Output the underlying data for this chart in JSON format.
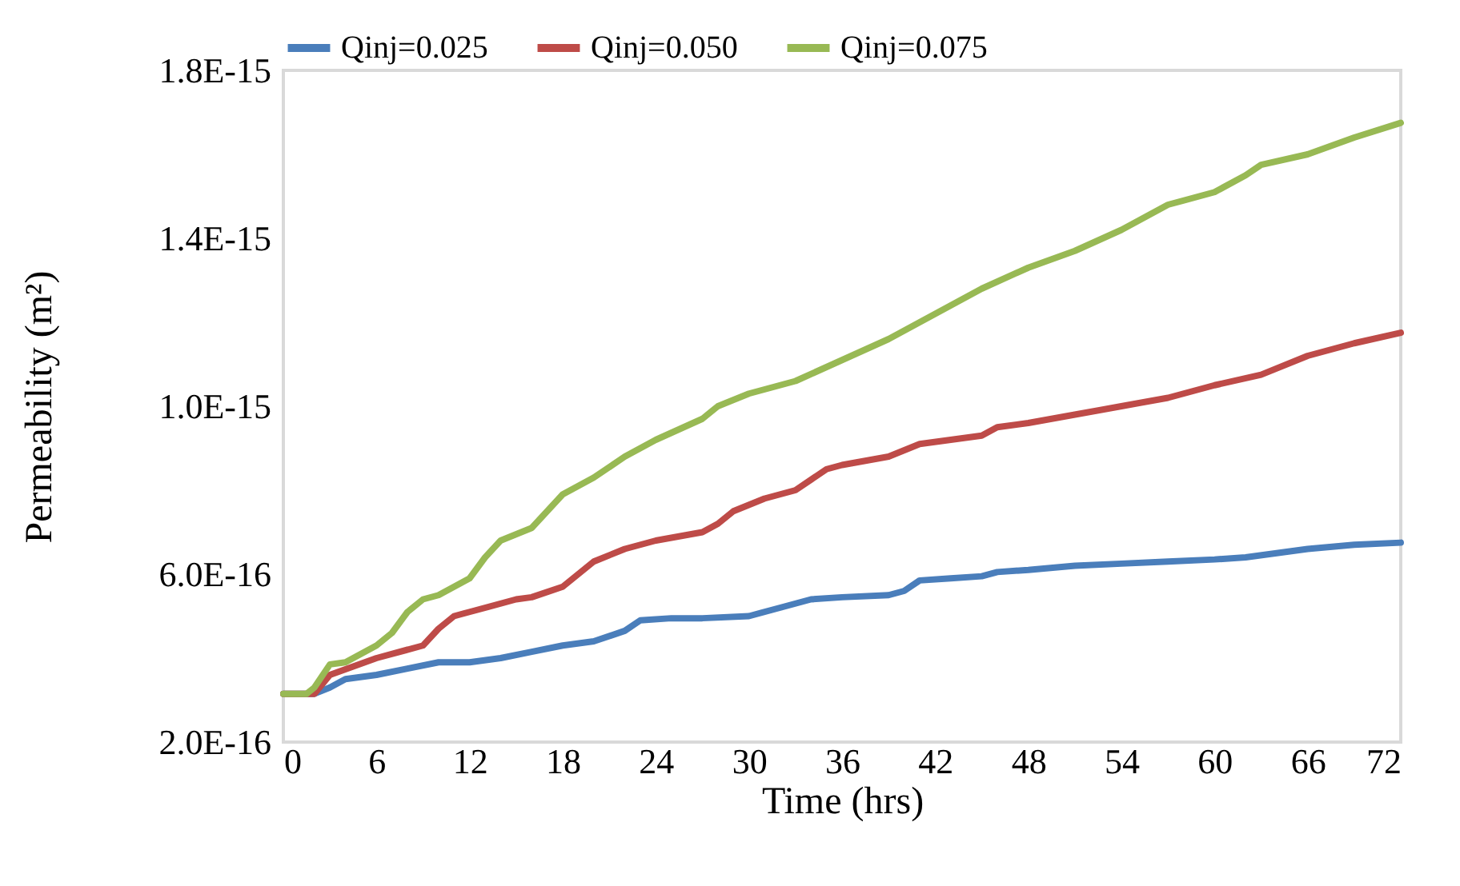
{
  "chart_data": {
    "type": "line",
    "xlabel": "Time (hrs)",
    "ylabel": "Permeability (m²)",
    "xlim": [
      0,
      72
    ],
    "xticks": [
      0,
      6,
      12,
      18,
      24,
      30,
      36,
      42,
      48,
      54,
      60,
      66,
      72
    ],
    "ylim": [
      2e-16,
      1.8e-15
    ],
    "yticks": [
      {
        "value": 2e-16,
        "label": "2.0E-16"
      },
      {
        "value": 6e-16,
        "label": "6.0E-16"
      },
      {
        "value": 1e-15,
        "label": "1.0E-15"
      },
      {
        "value": 1.4e-15,
        "label": "1.4E-15"
      },
      {
        "value": 1.8e-15,
        "label": "1.8E-15"
      }
    ],
    "grid": false,
    "legend": "top",
    "marker": "none",
    "line_style": "solid",
    "series": [
      {
        "name": "Qinj=0.025",
        "color": "#4a7ebb",
        "x": [
          0,
          2,
          3,
          4,
          6,
          8,
          10,
          12,
          14,
          16,
          18,
          20,
          22,
          23,
          25,
          27,
          30,
          32,
          34,
          36,
          39,
          40,
          41,
          43,
          45,
          46,
          48,
          51,
          54,
          57,
          60,
          62,
          64,
          66,
          69,
          72
        ],
        "values": [
          3.15e-16,
          3.15e-16,
          3.3e-16,
          3.5e-16,
          3.6e-16,
          3.75e-16,
          3.9e-16,
          3.9e-16,
          4e-16,
          4.15e-16,
          4.3e-16,
          4.4e-16,
          4.65e-16,
          4.9e-16,
          4.95e-16,
          4.95e-16,
          5e-16,
          5.2e-16,
          5.4e-16,
          5.45e-16,
          5.5e-16,
          5.6e-16,
          5.85e-16,
          5.9e-16,
          5.95e-16,
          6.05e-16,
          6.1e-16,
          6.2e-16,
          6.25e-16,
          6.3e-16,
          6.35e-16,
          6.4e-16,
          6.5e-16,
          6.6e-16,
          6.7e-16,
          6.75e-16
        ]
      },
      {
        "name": "Qinj=0.050",
        "color": "#be4b48",
        "x": [
          0,
          2,
          3,
          6,
          9,
          10,
          11,
          12,
          15,
          16,
          18,
          20,
          22,
          24,
          27,
          28,
          29,
          31,
          33,
          35,
          36,
          39,
          41,
          43,
          45,
          46,
          48,
          51,
          54,
          57,
          60,
          63,
          66,
          69,
          72
        ],
        "values": [
          3.15e-16,
          3.15e-16,
          3.6e-16,
          4e-16,
          4.3e-16,
          4.7e-16,
          5e-16,
          5.1e-16,
          5.4e-16,
          5.45e-16,
          5.7e-16,
          6.3e-16,
          6.6e-16,
          6.8e-16,
          7e-16,
          7.2e-16,
          7.5e-16,
          7.8e-16,
          8e-16,
          8.5e-16,
          8.6e-16,
          8.8e-16,
          9.1e-16,
          9.2e-16,
          9.3e-16,
          9.5e-16,
          9.6e-16,
          9.8e-16,
          1e-15,
          1.02e-15,
          1.05e-15,
          1.075e-15,
          1.12e-15,
          1.15e-15,
          1.175e-15
        ]
      },
      {
        "name": "Qinj=0.075",
        "color": "#98b954",
        "x": [
          0,
          1.5,
          2,
          3,
          4,
          6,
          7,
          8,
          9,
          10,
          12,
          13,
          14,
          16,
          18,
          20,
          22,
          24,
          27,
          28,
          30,
          33,
          36,
          39,
          42,
          43,
          45,
          48,
          51,
          54,
          57,
          60,
          62,
          63,
          66,
          69,
          72
        ],
        "values": [
          3.15e-16,
          3.15e-16,
          3.3e-16,
          3.85e-16,
          3.9e-16,
          4.3e-16,
          4.6e-16,
          5.1e-16,
          5.4e-16,
          5.5e-16,
          5.9e-16,
          6.4e-16,
          6.8e-16,
          7.1e-16,
          7.9e-16,
          8.3e-16,
          8.8e-16,
          9.2e-16,
          9.7e-16,
          1e-15,
          1.03e-15,
          1.06e-15,
          1.11e-15,
          1.16e-15,
          1.22e-15,
          1.24e-15,
          1.28e-15,
          1.33e-15,
          1.37e-15,
          1.42e-15,
          1.48e-15,
          1.51e-15,
          1.55e-15,
          1.575e-15,
          1.6e-15,
          1.64e-15,
          1.675e-15
        ]
      }
    ]
  }
}
